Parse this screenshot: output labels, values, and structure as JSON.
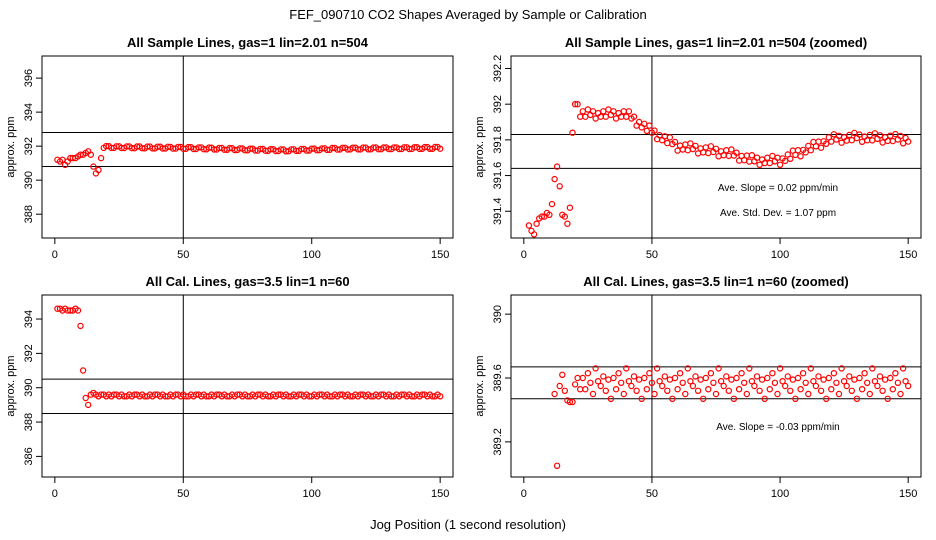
{
  "figure": {
    "title": "FEF_090710  CO2 Shapes Averaged by Sample or Calibration",
    "xlabel": "Jog Position (1 second resolution)"
  },
  "colors": {
    "points": "#ff0000",
    "frame": "#000000"
  },
  "chart_data": [
    {
      "type": "scatter",
      "title": "All Sample Lines, gas=1 lin=2.01 n=504",
      "ylabel": "approx. ppm",
      "xlim": [
        -5,
        155
      ],
      "ylim": [
        386.6,
        397.3
      ],
      "xticks": [
        0,
        50,
        100,
        150
      ],
      "yticks": [
        388,
        390,
        392,
        394,
        396
      ],
      "vline": 50,
      "hlines": [
        390.8,
        392.8
      ],
      "annotations": [],
      "segments": [
        {
          "x": [
            1,
            2,
            3,
            4,
            5,
            6,
            7,
            8,
            9,
            10,
            11,
            12,
            13,
            14,
            15,
            16,
            17,
            18,
            19
          ],
          "y": [
            391.2,
            391.1,
            391.2,
            390.9,
            391.1,
            391.3,
            391.3,
            391.3,
            391.4,
            391.5,
            391.5,
            391.6,
            391.7,
            391.5,
            390.8,
            390.4,
            390.6,
            391.3,
            391.9
          ]
        },
        {
          "x0": 20,
          "x1": 150,
          "pattern": [
            392.0,
            392.0,
            391.9,
            391.9,
            392.0,
            392.0,
            391.9,
            391.9
          ],
          "drift": [
            [
              20,
              0
            ],
            [
              50,
              -0.05
            ],
            [
              90,
              -0.2
            ],
            [
              110,
              -0.1
            ],
            [
              150,
              -0.05
            ]
          ]
        }
      ]
    },
    {
      "type": "scatter",
      "title": "All Sample Lines, gas=1 lin=2.01 n=504 (zoomed)",
      "ylabel": "approx. ppm",
      "xlim": [
        -5,
        155
      ],
      "ylim": [
        391.25,
        392.27
      ],
      "xticks": [
        0,
        50,
        100,
        150
      ],
      "yticks": [
        391.4,
        391.6,
        391.8,
        392.0,
        392.2
      ],
      "vline": 50,
      "hlines": [
        391.83,
        391.64
      ],
      "annotations": [
        "Ave. Slope =  0.02  ppm/min",
        "Ave. Std. Dev. =  1.07  ppm"
      ],
      "segments": [
        {
          "x": [
            2,
            3,
            4,
            5,
            6,
            7,
            8,
            9,
            10,
            11,
            12,
            13,
            14,
            15,
            16,
            17,
            18,
            19,
            20,
            21,
            22
          ],
          "y": [
            391.32,
            391.29,
            391.27,
            391.33,
            391.36,
            391.37,
            391.37,
            391.39,
            391.38,
            391.44,
            391.58,
            391.65,
            391.54,
            391.38,
            391.37,
            391.33,
            391.42,
            391.84,
            392.0,
            392.0,
            391.93
          ]
        },
        {
          "x0": 23,
          "x1": 150,
          "pattern": [
            391.96,
            391.93,
            391.97,
            391.94,
            391.96,
            391.92,
            391.95,
            391.93
          ],
          "drift": [
            [
              23,
              0
            ],
            [
              40,
              0
            ],
            [
              50,
              -0.1
            ],
            [
              60,
              -0.18
            ],
            [
              70,
              -0.2
            ],
            [
              80,
              -0.22
            ],
            [
              90,
              -0.26
            ],
            [
              100,
              -0.26
            ],
            [
              110,
              -0.2
            ],
            [
              120,
              -0.14
            ],
            [
              130,
              -0.13
            ],
            [
              150,
              -0.14
            ]
          ]
        }
      ]
    },
    {
      "type": "scatter",
      "title": "All Cal. Lines, gas=3.5 lin=1 n=60",
      "ylabel": "approx. ppm",
      "xlim": [
        -5,
        155
      ],
      "ylim": [
        384.8,
        395.4
      ],
      "xticks": [
        0,
        50,
        100,
        150
      ],
      "yticks": [
        386,
        388,
        390,
        392,
        394
      ],
      "vline": 50,
      "hlines": [
        390.5,
        388.5
      ],
      "annotations": [],
      "segments": [
        {
          "x": [
            1,
            2,
            3,
            4,
            5,
            6,
            7,
            8,
            9,
            10,
            11,
            12,
            13,
            14,
            15,
            16,
            17,
            18,
            19
          ],
          "y": [
            394.6,
            394.6,
            394.5,
            394.6,
            394.5,
            394.5,
            394.5,
            394.6,
            394.5,
            393.6,
            391.0,
            389.4,
            389.0,
            389.6,
            389.7,
            389.6,
            389.5,
            389.6,
            389.6
          ]
        },
        {
          "x0": 20,
          "x1": 150,
          "pattern": [
            389.5,
            389.6,
            389.5,
            389.6,
            389.6,
            389.5,
            389.6,
            389.5
          ],
          "drift": [
            [
              20,
              0
            ],
            [
              150,
              0
            ]
          ]
        }
      ]
    },
    {
      "type": "scatter",
      "title": "All Cal. Lines, gas=3.5 lin=1 n=60 (zoomed)",
      "ylabel": "approx. ppm",
      "xlim": [
        -5,
        155
      ],
      "ylim": [
        388.98,
        390.12
      ],
      "xticks": [
        0,
        50,
        100,
        150
      ],
      "yticks": [
        389.2,
        389.6,
        390.0
      ],
      "vline": 50,
      "hlines": [
        389.67,
        389.47
      ],
      "annotations": [
        "Ave. Slope =  -0.03  ppm/min"
      ],
      "segments": [
        {
          "x": [
            12,
            13,
            14,
            15,
            16,
            17,
            18,
            19,
            20,
            21,
            22
          ],
          "y": [
            389.5,
            389.05,
            389.55,
            389.62,
            389.52,
            389.46,
            389.45,
            389.45,
            389.56,
            389.6,
            389.53
          ]
        },
        {
          "x0": 23,
          "x1": 150,
          "pattern": [
            389.6,
            389.53,
            389.63,
            389.57,
            389.5,
            389.66,
            389.58,
            389.55,
            389.61,
            389.52,
            389.59,
            389.47
          ],
          "drift": [
            [
              23,
              0
            ],
            [
              150,
              0
            ]
          ]
        }
      ]
    }
  ]
}
